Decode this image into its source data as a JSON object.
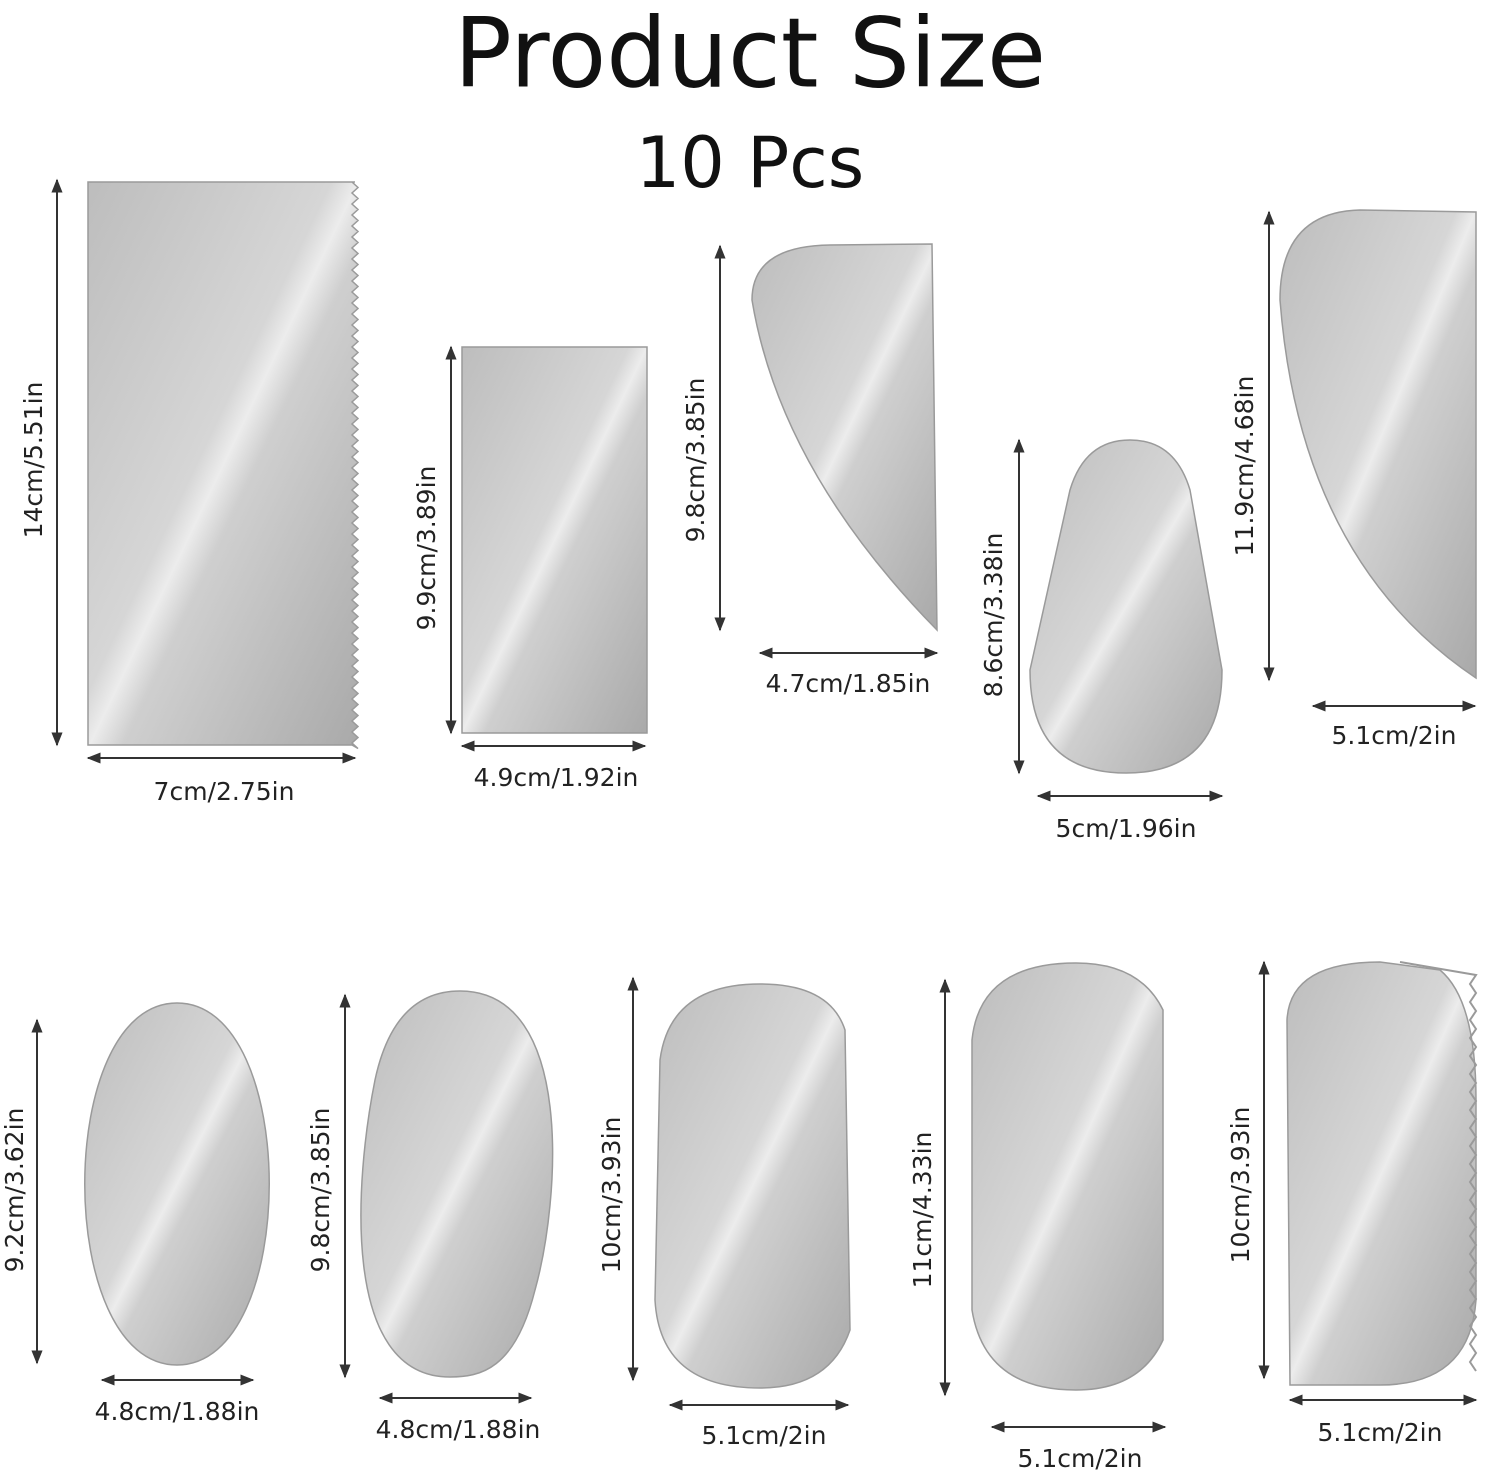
{
  "header": {
    "title": "Product Size",
    "subtitle": "10 Pcs"
  },
  "items": [
    {
      "height": "14cm/5.51in",
      "width": "7cm/2.75in"
    },
    {
      "height": "9.9cm/3.89in",
      "width": "4.9cm/1.92in"
    },
    {
      "height": "9.8cm/3.85in",
      "width": "4.7cm/1.85in"
    },
    {
      "height": "8.6cm/3.38in",
      "width": "5cm/1.96in"
    },
    {
      "height": "11.9cm/4.68in",
      "width": "5.1cm/2in"
    },
    {
      "height": "9.2cm/3.62in",
      "width": "4.8cm/1.88in"
    },
    {
      "height": "9.8cm/3.85in",
      "width": "4.8cm/1.88in"
    },
    {
      "height": "10cm/3.93in",
      "width": "5.1cm/2in"
    },
    {
      "height": "11cm/4.33in",
      "width": "5.1cm/2in"
    },
    {
      "height": "10cm/3.93in",
      "width": "5.1cm/2in"
    }
  ]
}
